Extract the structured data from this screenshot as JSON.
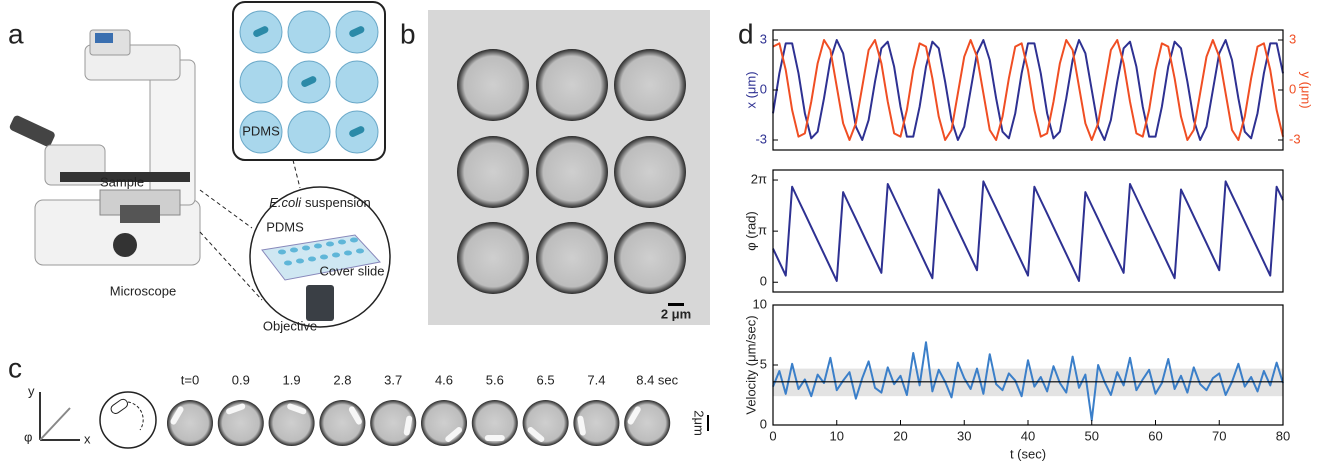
{
  "panels": {
    "a": {
      "label": "a",
      "sample": "Sample",
      "microscope": "Microscope",
      "well_label": "PDMS",
      "suspension_species": "E.coli",
      "suspension": "suspension",
      "chip": "PDMS",
      "cover_slide": "Cover slide",
      "objective": "Objective"
    },
    "b": {
      "label": "b",
      "scale": "2 μm"
    },
    "c": {
      "label": "c",
      "axis_y": "y",
      "axis_x": "x",
      "axis_phi": "φ",
      "times": [
        "t=0",
        "0.9",
        "1.9",
        "2.8",
        "3.7",
        "4.6",
        "5.6",
        "6.5",
        "7.4",
        "8.4 sec"
      ],
      "scale": "2μm"
    },
    "d": {
      "label": "d"
    }
  },
  "chart_data": [
    {
      "type": "line",
      "ylabel": "x (μm)",
      "y2label": "y (μm)",
      "x": [
        0,
        1,
        2,
        3,
        4,
        5,
        6,
        7,
        8,
        9,
        10,
        11,
        12,
        13,
        14,
        15,
        16,
        17,
        18,
        19,
        20,
        21,
        22,
        23,
        24,
        25,
        26,
        27,
        28,
        29,
        30,
        31,
        32,
        33,
        34,
        35,
        36,
        37,
        38,
        39,
        40,
        41,
        42,
        43,
        44,
        45,
        46,
        47,
        48,
        49,
        50,
        51,
        52,
        53,
        54,
        55,
        56,
        57,
        58,
        59,
        60,
        61,
        62,
        63,
        64,
        65,
        66,
        67,
        68,
        69,
        70,
        71,
        72,
        73,
        74,
        75,
        76,
        77,
        78,
        79,
        80
      ],
      "xlim": [
        0,
        80
      ],
      "ylim": [
        -3.6,
        3.6
      ],
      "yticks": [
        -3,
        0,
        3
      ],
      "y2lim": [
        -3.6,
        3.6
      ],
      "y2ticks": [
        -3,
        0,
        3
      ],
      "series": [
        {
          "color": "#2e3192",
          "values": [
            -1.4,
            1.0,
            2.8,
            2.8,
            1.0,
            -1.4,
            -2.9,
            -2.5,
            -0.5,
            1.8,
            3.0,
            2.2,
            0,
            -2.2,
            -3.0,
            -1.8,
            0.5,
            2.5,
            2.9,
            1.4,
            -1.0,
            -2.8,
            -2.8,
            -1.0,
            1.4,
            2.9,
            2.5,
            0.5,
            -1.8,
            -3.0,
            -2.2,
            0,
            2.2,
            3.0,
            1.8,
            -0.5,
            -2.5,
            -2.9,
            -1.4,
            1.0,
            2.8,
            2.8,
            1.0,
            -1.4,
            -2.9,
            -2.5,
            -0.5,
            1.8,
            3.0,
            2.2,
            0,
            -2.2,
            -3.0,
            -1.8,
            0.5,
            2.5,
            2.9,
            1.4,
            -1.0,
            -2.8,
            -2.8,
            -1.0,
            1.4,
            2.9,
            2.5,
            0.5,
            -1.8,
            -3.0,
            -2.2,
            0,
            2.2,
            3.0,
            1.8,
            -0.5,
            -2.5,
            -2.9,
            -1.4,
            1.0,
            2.8,
            2.8,
            1.0
          ]
        },
        {
          "color": "#f04e23",
          "axis": "y2",
          "values": [
            2.6,
            2.8,
            1.2,
            -1.2,
            -2.8,
            -2.6,
            -0.7,
            1.6,
            3.0,
            2.4,
            0.2,
            -2.0,
            -3.0,
            -2.0,
            0.2,
            2.4,
            3.0,
            1.6,
            -0.7,
            -2.6,
            -2.8,
            -1.2,
            1.2,
            2.8,
            2.6,
            0.7,
            -1.6,
            -3.0,
            -2.4,
            -0.2,
            2.0,
            3.0,
            2.0,
            -0.2,
            -2.4,
            -3.0,
            -1.6,
            0.7,
            2.6,
            2.8,
            1.2,
            -1.2,
            -2.8,
            -2.6,
            -0.7,
            1.6,
            3.0,
            2.4,
            0.2,
            -2.0,
            -3.0,
            -2.0,
            0.2,
            2.4,
            3.0,
            1.6,
            -0.7,
            -2.6,
            -2.8,
            -1.2,
            1.2,
            2.8,
            2.6,
            0.7,
            -1.6,
            -3.0,
            -2.4,
            -0.2,
            2.0,
            3.0,
            2.0,
            -0.2,
            -2.4,
            -3.0,
            -1.6,
            0.7,
            2.6,
            2.8,
            1.2,
            -1.2,
            -2.8
          ]
        }
      ]
    },
    {
      "type": "line",
      "ylabel": "φ (rad)",
      "x": [
        0,
        1,
        2,
        3,
        4,
        5,
        6,
        7,
        8,
        9,
        10,
        11,
        12,
        13,
        14,
        15,
        16,
        17,
        18,
        19,
        20,
        21,
        22,
        23,
        24,
        25,
        26,
        27,
        28,
        29,
        30,
        31,
        32,
        33,
        34,
        35,
        36,
        37,
        38,
        39,
        40,
        41,
        42,
        43,
        44,
        45,
        46,
        47,
        48,
        49,
        50,
        51,
        52,
        53,
        54,
        55,
        56,
        57,
        58,
        59,
        60,
        61,
        62,
        63,
        64,
        65,
        66,
        67,
        68,
        69,
        70,
        71,
        72,
        73,
        74,
        75,
        76,
        77,
        78,
        79,
        80
      ],
      "xlim": [
        0,
        80
      ],
      "ylim": [
        -0.6,
        6.9
      ],
      "yticks": [
        0,
        {
          "value": 3.1416,
          "label": "π"
        },
        {
          "value": 6.2832,
          "label": "2π"
        }
      ],
      "series": [
        {
          "color": "#2e3192",
          "values": [
            2.07,
            1.24,
            0.41,
            5.87,
            5.04,
            4.22,
            3.39,
            2.56,
            1.74,
            0.91,
            0.08,
            5.54,
            4.71,
            3.89,
            3.06,
            2.23,
            1.41,
            0.58,
            6.04,
            5.21,
            4.38,
            3.55,
            2.73,
            1.9,
            1.07,
            0.25,
            5.7,
            4.88,
            4.05,
            3.22,
            2.4,
            1.57,
            0.74,
            6.2,
            5.37,
            4.55,
            3.72,
            2.89,
            2.07,
            1.24,
            0.41,
            5.87,
            5.04,
            4.22,
            3.39,
            2.56,
            1.74,
            0.91,
            0.08,
            5.54,
            4.71,
            3.89,
            3.06,
            2.23,
            1.41,
            0.58,
            6.04,
            5.21,
            4.38,
            3.55,
            2.73,
            1.9,
            1.07,
            0.25,
            5.7,
            4.88,
            4.05,
            3.22,
            2.4,
            1.57,
            0.74,
            6.2,
            5.37,
            4.55,
            3.72,
            2.89,
            2.07,
            1.24,
            0.41,
            5.87,
            5.04
          ]
        }
      ]
    },
    {
      "type": "line",
      "ylabel": "Velocity (μm/sec)",
      "xlabel": "t (sec)",
      "x": [
        0,
        1,
        2,
        3,
        4,
        5,
        6,
        7,
        8,
        9,
        10,
        11,
        12,
        13,
        14,
        15,
        16,
        17,
        18,
        19,
        20,
        21,
        22,
        23,
        24,
        25,
        26,
        27,
        28,
        29,
        30,
        31,
        32,
        33,
        34,
        35,
        36,
        37,
        38,
        39,
        40,
        41,
        42,
        43,
        44,
        45,
        46,
        47,
        48,
        49,
        50,
        51,
        52,
        53,
        54,
        55,
        56,
        57,
        58,
        59,
        60,
        61,
        62,
        63,
        64,
        65,
        66,
        67,
        68,
        69,
        70,
        71,
        72,
        73,
        74,
        75,
        76,
        77,
        78,
        79,
        80
      ],
      "xlim": [
        0,
        80
      ],
      "xticks": [
        0,
        10,
        20,
        30,
        40,
        50,
        60,
        70,
        80
      ],
      "ylim": [
        0,
        10
      ],
      "yticks": [
        0,
        5,
        10
      ],
      "mean": 3.6,
      "band": [
        2.4,
        4.7
      ],
      "series": [
        {
          "color": "#3b7fc9",
          "values": [
            3.2,
            4.5,
            2.6,
            5.1,
            3.0,
            3.8,
            2.4,
            4.2,
            3.5,
            5.6,
            2.9,
            3.7,
            4.4,
            2.2,
            3.9,
            5.3,
            3.1,
            2.7,
            4.8,
            3.4,
            4.1,
            2.5,
            6.0,
            3.3,
            6.9,
            2.8,
            4.6,
            3.6,
            2.3,
            5.2,
            3.9,
            3.0,
            4.7,
            2.6,
            5.9,
            3.4,
            2.9,
            4.3,
            3.7,
            2.4,
            5.4,
            3.2,
            4.0,
            2.8,
            4.9,
            3.5,
            2.7,
            5.7,
            3.1,
            4.2,
            0.4,
            5.0,
            3.6,
            2.5,
            4.4,
            3.3,
            5.6,
            2.9,
            3.8,
            4.6,
            2.6,
            3.5,
            5.5,
            3.0,
            4.1,
            2.7,
            4.8,
            3.4,
            2.9,
            3.9,
            4.3,
            2.5,
            3.6,
            5.1,
            3.2,
            4.0,
            2.8,
            4.5,
            3.3,
            5.2,
            3.5
          ]
        }
      ]
    }
  ]
}
